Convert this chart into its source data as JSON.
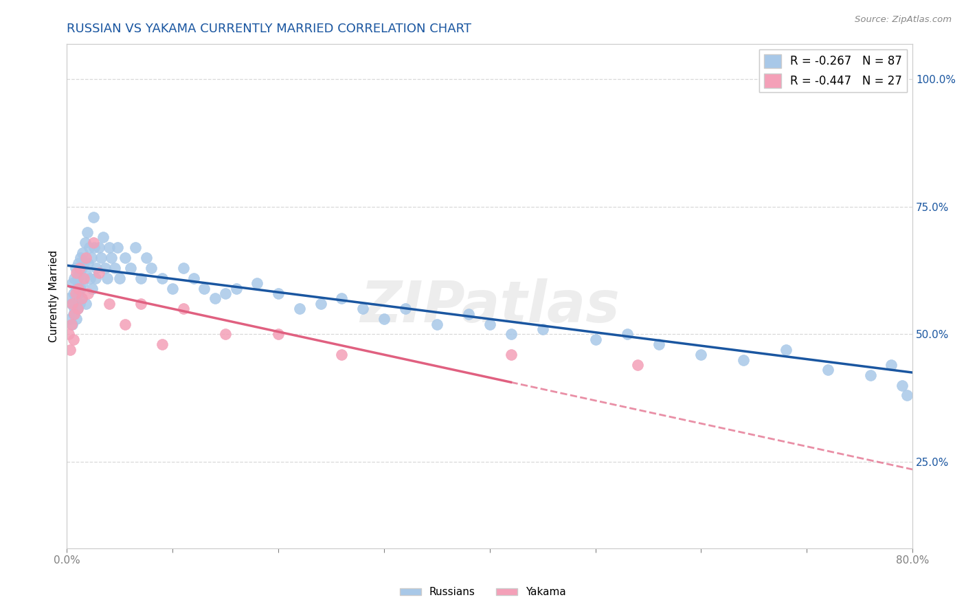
{
  "title": "RUSSIAN VS YAKAMA CURRENTLY MARRIED CORRELATION CHART",
  "source_text": "Source: ZipAtlas.com",
  "ylabel": "Currently Married",
  "x_min": 0.0,
  "x_max": 0.8,
  "y_min": 0.08,
  "y_max": 1.07,
  "x_ticks": [
    0.0,
    0.1,
    0.2,
    0.3,
    0.4,
    0.5,
    0.6,
    0.7,
    0.8
  ],
  "x_tick_labels": [
    "0.0%",
    "",
    "",
    "",
    "",
    "",
    "",
    "",
    "80.0%"
  ],
  "y_ticks_right": [
    0.25,
    0.5,
    0.75,
    1.0
  ],
  "y_tick_labels_right": [
    "25.0%",
    "50.0%",
    "75.0%",
    "100.0%"
  ],
  "legend_entries": [
    {
      "label": "R = -0.267   N = 87",
      "color": "#a8c8e8"
    },
    {
      "label": "R = -0.447   N = 27",
      "color": "#f4a0b8"
    }
  ],
  "legend_bottom": [
    "Russians",
    "Yakama"
  ],
  "russian_color": "#a8c8e8",
  "yakama_color": "#f4a0b8",
  "russian_line_color": "#1a56a0",
  "yakama_line_color": "#e06080",
  "title_color": "#1a56a0",
  "title_fontsize": 13,
  "watermark_text": "ZIPatlas",
  "background_color": "#ffffff",
  "grid_color": "#d8d8d8",
  "russians_x": [
    0.002,
    0.003,
    0.004,
    0.005,
    0.005,
    0.006,
    0.006,
    0.007,
    0.007,
    0.008,
    0.008,
    0.009,
    0.009,
    0.01,
    0.01,
    0.011,
    0.011,
    0.012,
    0.012,
    0.013,
    0.013,
    0.014,
    0.014,
    0.015,
    0.015,
    0.016,
    0.017,
    0.018,
    0.018,
    0.019,
    0.02,
    0.021,
    0.022,
    0.023,
    0.024,
    0.025,
    0.026,
    0.027,
    0.028,
    0.03,
    0.032,
    0.034,
    0.036,
    0.038,
    0.04,
    0.042,
    0.045,
    0.048,
    0.05,
    0.055,
    0.06,
    0.065,
    0.07,
    0.075,
    0.08,
    0.09,
    0.1,
    0.11,
    0.12,
    0.13,
    0.14,
    0.15,
    0.16,
    0.18,
    0.2,
    0.22,
    0.24,
    0.26,
    0.28,
    0.3,
    0.32,
    0.35,
    0.38,
    0.4,
    0.42,
    0.45,
    0.5,
    0.53,
    0.56,
    0.6,
    0.64,
    0.68,
    0.72,
    0.76,
    0.78,
    0.79,
    0.795
  ],
  "russians_y": [
    0.57,
    0.53,
    0.56,
    0.6,
    0.52,
    0.58,
    0.54,
    0.61,
    0.55,
    0.63,
    0.57,
    0.59,
    0.53,
    0.61,
    0.55,
    0.64,
    0.58,
    0.62,
    0.56,
    0.65,
    0.59,
    0.63,
    0.57,
    0.66,
    0.6,
    0.64,
    0.68,
    0.62,
    0.56,
    0.7,
    0.64,
    0.67,
    0.61,
    0.65,
    0.59,
    0.73,
    0.67,
    0.61,
    0.63,
    0.67,
    0.65,
    0.69,
    0.63,
    0.61,
    0.67,
    0.65,
    0.63,
    0.67,
    0.61,
    0.65,
    0.63,
    0.67,
    0.61,
    0.65,
    0.63,
    0.61,
    0.59,
    0.63,
    0.61,
    0.59,
    0.57,
    0.58,
    0.59,
    0.6,
    0.58,
    0.55,
    0.56,
    0.57,
    0.55,
    0.53,
    0.55,
    0.52,
    0.54,
    0.52,
    0.5,
    0.51,
    0.49,
    0.5,
    0.48,
    0.46,
    0.45,
    0.47,
    0.43,
    0.42,
    0.44,
    0.4,
    0.38
  ],
  "yakama_x": [
    0.002,
    0.003,
    0.004,
    0.005,
    0.006,
    0.007,
    0.008,
    0.009,
    0.01,
    0.011,
    0.012,
    0.014,
    0.016,
    0.018,
    0.02,
    0.025,
    0.03,
    0.04,
    0.055,
    0.07,
    0.09,
    0.11,
    0.15,
    0.2,
    0.26,
    0.42,
    0.54
  ],
  "yakama_y": [
    0.5,
    0.47,
    0.52,
    0.56,
    0.49,
    0.54,
    0.58,
    0.62,
    0.55,
    0.59,
    0.63,
    0.57,
    0.61,
    0.65,
    0.58,
    0.68,
    0.62,
    0.56,
    0.52,
    0.56,
    0.48,
    0.55,
    0.5,
    0.5,
    0.46,
    0.46,
    0.44
  ],
  "russian_trend_x0": 0.0,
  "russian_trend_y0": 0.635,
  "russian_trend_x1": 0.8,
  "russian_trend_y1": 0.425,
  "yakama_trend_x0": 0.0,
  "yakama_trend_y0": 0.595,
  "yakama_trend_x1_solid": 0.42,
  "yakama_trend_x1": 0.8,
  "yakama_trend_y1": 0.235,
  "R_russian": -0.267,
  "R_yakama": -0.447,
  "N_russian": 87,
  "N_yakama": 27
}
